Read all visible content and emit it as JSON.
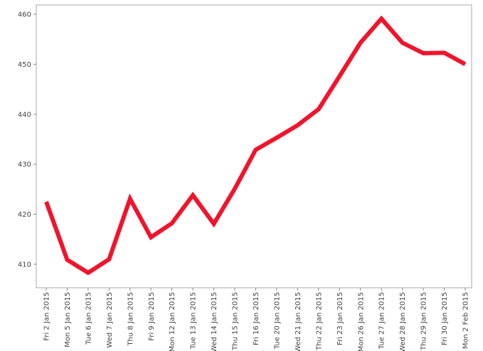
{
  "chart_data": {
    "type": "line",
    "categories": [
      "Fri 2 Jan 2015",
      "Mon 5 Jan 2015",
      "Tue 6 Jan 2015",
      "Wed 7 Jan 2015",
      "Thu 8 Jan 2015",
      "Fri 9 Jan 2015",
      "Mon 12 Jan 2015",
      "Tue 13 Jan 2015",
      "Wed 14 Jan 2015",
      "Thu 15 Jan 2015",
      "Fri 16 Jan 2015",
      "Tue 20 Jan 2015",
      "Wed 21 Jan 2015",
      "Thu 22 Jan 2015",
      "Fri 23 Jan 2015",
      "Mon 26 Jan 2015",
      "Tue 27 Jan 2015",
      "Wed 28 Jan 2015",
      "Thu 29 Jan 2015",
      "Fri 30 Jan 2015",
      "Mon 2 Feb 2015"
    ],
    "values": [
      422.5,
      410.9,
      408.3,
      411.0,
      423.1,
      415.4,
      418.2,
      423.8,
      418.1,
      425.1,
      432.9,
      435.3,
      437.8,
      441.0,
      447.6,
      454.3,
      459.1,
      454.3,
      452.2,
      452.3,
      450.0
    ],
    "color": "#f0142c",
    "ylim": [
      405.3,
      461.85
    ],
    "yticks": [
      410,
      420,
      430,
      440,
      450,
      460
    ],
    "grid": false
  }
}
